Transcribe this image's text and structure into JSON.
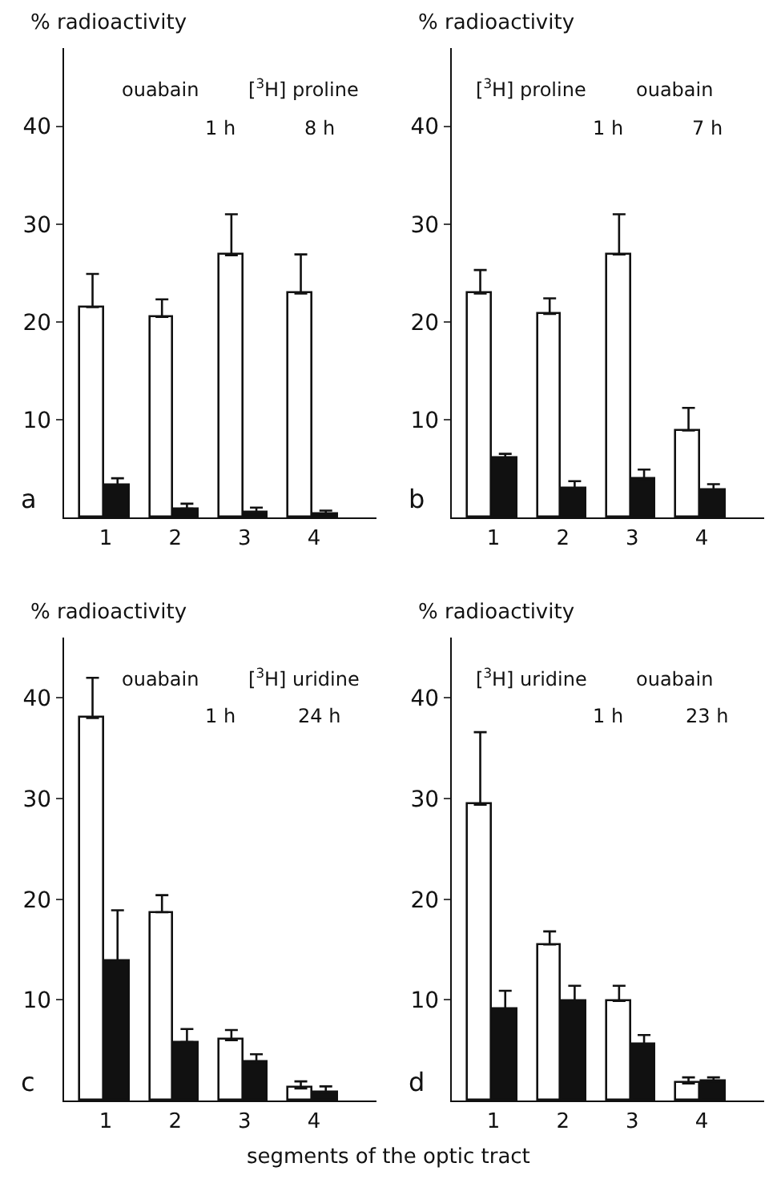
{
  "chart_data": [
    {
      "type": "bar",
      "ylabel": "% radioactivity",
      "categories": [
        "1",
        "2",
        "3",
        "4"
      ],
      "ylim": [
        0,
        48
      ],
      "yticks": [
        10,
        20,
        30,
        40
      ],
      "annotations": [
        "a",
        "ouabain",
        "[$^{3}$H] proline",
        "1 h",
        "8 h"
      ],
      "series": [
        {
          "color": "#ffffff",
          "values": [
            21.5,
            20.5,
            26.8,
            22.9
          ],
          "errors": [
            [
              21.5,
              24.9
            ],
            [
              20.5,
              22.3
            ],
            [
              26.8,
              31.0
            ],
            [
              22.9,
              26.9
            ]
          ]
        },
        {
          "color": "#111111",
          "values": [
            3.3,
            0.9,
            0.5,
            0.3
          ],
          "errors": [
            [
              3.3,
              4.0
            ],
            [
              0.9,
              1.4
            ],
            [
              0.5,
              1.0
            ],
            [
              0.3,
              0.7
            ]
          ]
        }
      ]
    },
    {
      "type": "bar",
      "ylabel": "% radioactivity",
      "categories": [
        "1",
        "2",
        "3",
        "4"
      ],
      "ylim": [
        0,
        48
      ],
      "yticks": [
        10,
        20,
        30,
        40
      ],
      "annotations": [
        "b",
        "[$^{3}$H] proline",
        "ouabain",
        "1 h",
        "7 h"
      ],
      "series": [
        {
          "color": "#ffffff",
          "values": [
            22.9,
            20.8,
            26.9,
            8.9
          ],
          "errors": [
            [
              22.9,
              25.3
            ],
            [
              20.8,
              22.4
            ],
            [
              26.9,
              31.0
            ],
            [
              8.9,
              11.2
            ]
          ]
        },
        {
          "color": "#111111",
          "values": [
            6.0,
            3.0,
            3.9,
            2.8
          ],
          "errors": [
            [
              6.0,
              6.5
            ],
            [
              3.0,
              3.7
            ],
            [
              3.9,
              4.9
            ],
            [
              2.8,
              3.4
            ]
          ]
        }
      ]
    },
    {
      "type": "bar",
      "ylabel": "% radioactivity",
      "xlabel": "segments of the optic tract",
      "categories": [
        "1",
        "2",
        "3",
        "4"
      ],
      "ylim": [
        0,
        46
      ],
      "yticks": [
        10,
        20,
        30,
        40
      ],
      "annotations": [
        "c",
        "ouabain",
        "[$^{3}$H] uridine",
        "1 h",
        "24 h"
      ],
      "series": [
        {
          "color": "#ffffff",
          "values": [
            38.0,
            18.7,
            6.0,
            1.2
          ],
          "errors": [
            [
              38.0,
              42.0
            ],
            [
              18.7,
              20.4
            ],
            [
              6.0,
              7.0
            ],
            [
              1.2,
              1.9
            ]
          ]
        },
        {
          "color": "#111111",
          "values": [
            13.8,
            5.8,
            3.8,
            0.8
          ],
          "errors": [
            [
              13.8,
              18.9
            ],
            [
              5.8,
              7.1
            ],
            [
              3.8,
              4.6
            ],
            [
              0.8,
              1.4
            ]
          ]
        }
      ]
    },
    {
      "type": "bar",
      "ylabel": "% radioactivity",
      "categories": [
        "1",
        "2",
        "3",
        "4"
      ],
      "ylim": [
        0,
        46
      ],
      "yticks": [
        10,
        20,
        30,
        40
      ],
      "annotations": [
        "d",
        "[$^{3}$H] uridine",
        "ouabain",
        "1 h",
        "23 h"
      ],
      "series": [
        {
          "color": "#ffffff",
          "values": [
            29.4,
            15.5,
            9.9,
            1.7
          ],
          "errors": [
            [
              29.4,
              36.6
            ],
            [
              15.5,
              16.8
            ],
            [
              9.9,
              11.4
            ],
            [
              1.7,
              2.3
            ]
          ]
        },
        {
          "color": "#111111",
          "values": [
            9.1,
            9.9,
            5.5,
            1.9
          ],
          "errors": [
            [
              9.1,
              10.9
            ],
            [
              9.9,
              11.4
            ],
            [
              5.5,
              6.5
            ],
            [
              1.9,
              2.3
            ]
          ]
        }
      ]
    }
  ]
}
